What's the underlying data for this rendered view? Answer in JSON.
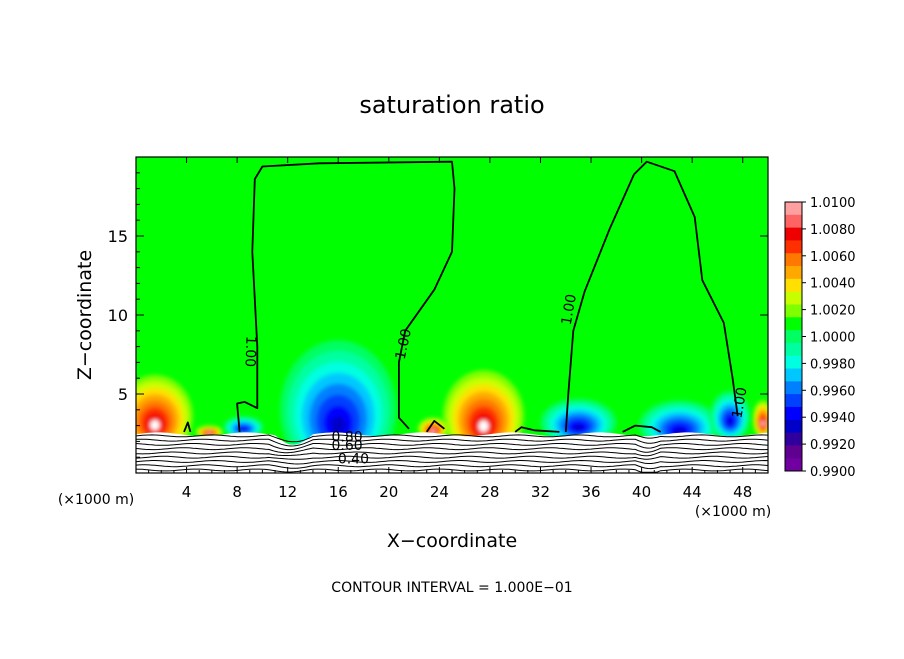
{
  "chart_data": {
    "type": "heatmap",
    "title": "saturation ratio",
    "xlabel": "X−coordinate",
    "ylabel": "Z−coordinate",
    "x_units_left": "(×1000 m)",
    "x_units_right": "(×1000 m)",
    "x_ticks": [
      4,
      8,
      12,
      16,
      20,
      24,
      28,
      32,
      36,
      40,
      44,
      48
    ],
    "y_ticks": [
      5,
      10,
      15
    ],
    "xlim": [
      0,
      50
    ],
    "ylim": [
      0,
      20
    ],
    "footer": "CONTOUR INTERVAL = 1.000E−01",
    "colorbar": {
      "labels": [
        "1.0100",
        "1.0080",
        "1.0060",
        "1.0040",
        "1.0020",
        "1.0000",
        "0.9980",
        "0.9960",
        "0.9940",
        "0.9920",
        "0.9900"
      ],
      "colors": [
        "#ffa0a0",
        "#ff6464",
        "#ee0000",
        "#ff3000",
        "#ff7800",
        "#ffa800",
        "#ffe000",
        "#c8ff00",
        "#80ff00",
        "#00ff00",
        "#00ff60",
        "#00ffa0",
        "#00ffe0",
        "#00c8ff",
        "#0080ff",
        "#0040ff",
        "#0000ff",
        "#0000c8",
        "#30009e",
        "#600090",
        "#7000a0"
      ]
    },
    "background_color": "#00ff00",
    "contour_labels": [
      "1.00",
      "1.00",
      "1.00",
      "1.00",
      "0.80",
      "0.60",
      "0.40"
    ],
    "blobs": [
      {
        "kind": "moist",
        "x": 1.5,
        "z": 3.6,
        "rx": 3.0,
        "rz": 2.6
      },
      {
        "kind": "moist",
        "x": 27.5,
        "z": 3.6,
        "rx": 3.2,
        "rz": 2.9
      },
      {
        "kind": "moist",
        "x": 5.8,
        "z": 2.6,
        "rx": 1.1,
        "rz": 0.4
      },
      {
        "kind": "moist",
        "x": 23.5,
        "z": 2.8,
        "rx": 1.2,
        "rz": 0.7
      },
      {
        "kind": "moist",
        "x": 49.6,
        "z": 3.4,
        "rx": 0.8,
        "rz": 1.2
      },
      {
        "kind": "dry",
        "x": 16.0,
        "z": 4.0,
        "rx": 4.6,
        "rz": 4.4
      },
      {
        "kind": "dry",
        "x": 43.0,
        "z": 3.0,
        "rx": 3.2,
        "rz": 1.6
      },
      {
        "kind": "dry",
        "x": 35.0,
        "z": 3.2,
        "rx": 3.0,
        "rz": 1.5
      },
      {
        "kind": "dry",
        "x": 8.5,
        "z": 2.9,
        "rx": 1.6,
        "rz": 0.7
      },
      {
        "kind": "dry",
        "x": 47.0,
        "z": 3.6,
        "rx": 1.6,
        "rz": 1.6
      }
    ]
  }
}
